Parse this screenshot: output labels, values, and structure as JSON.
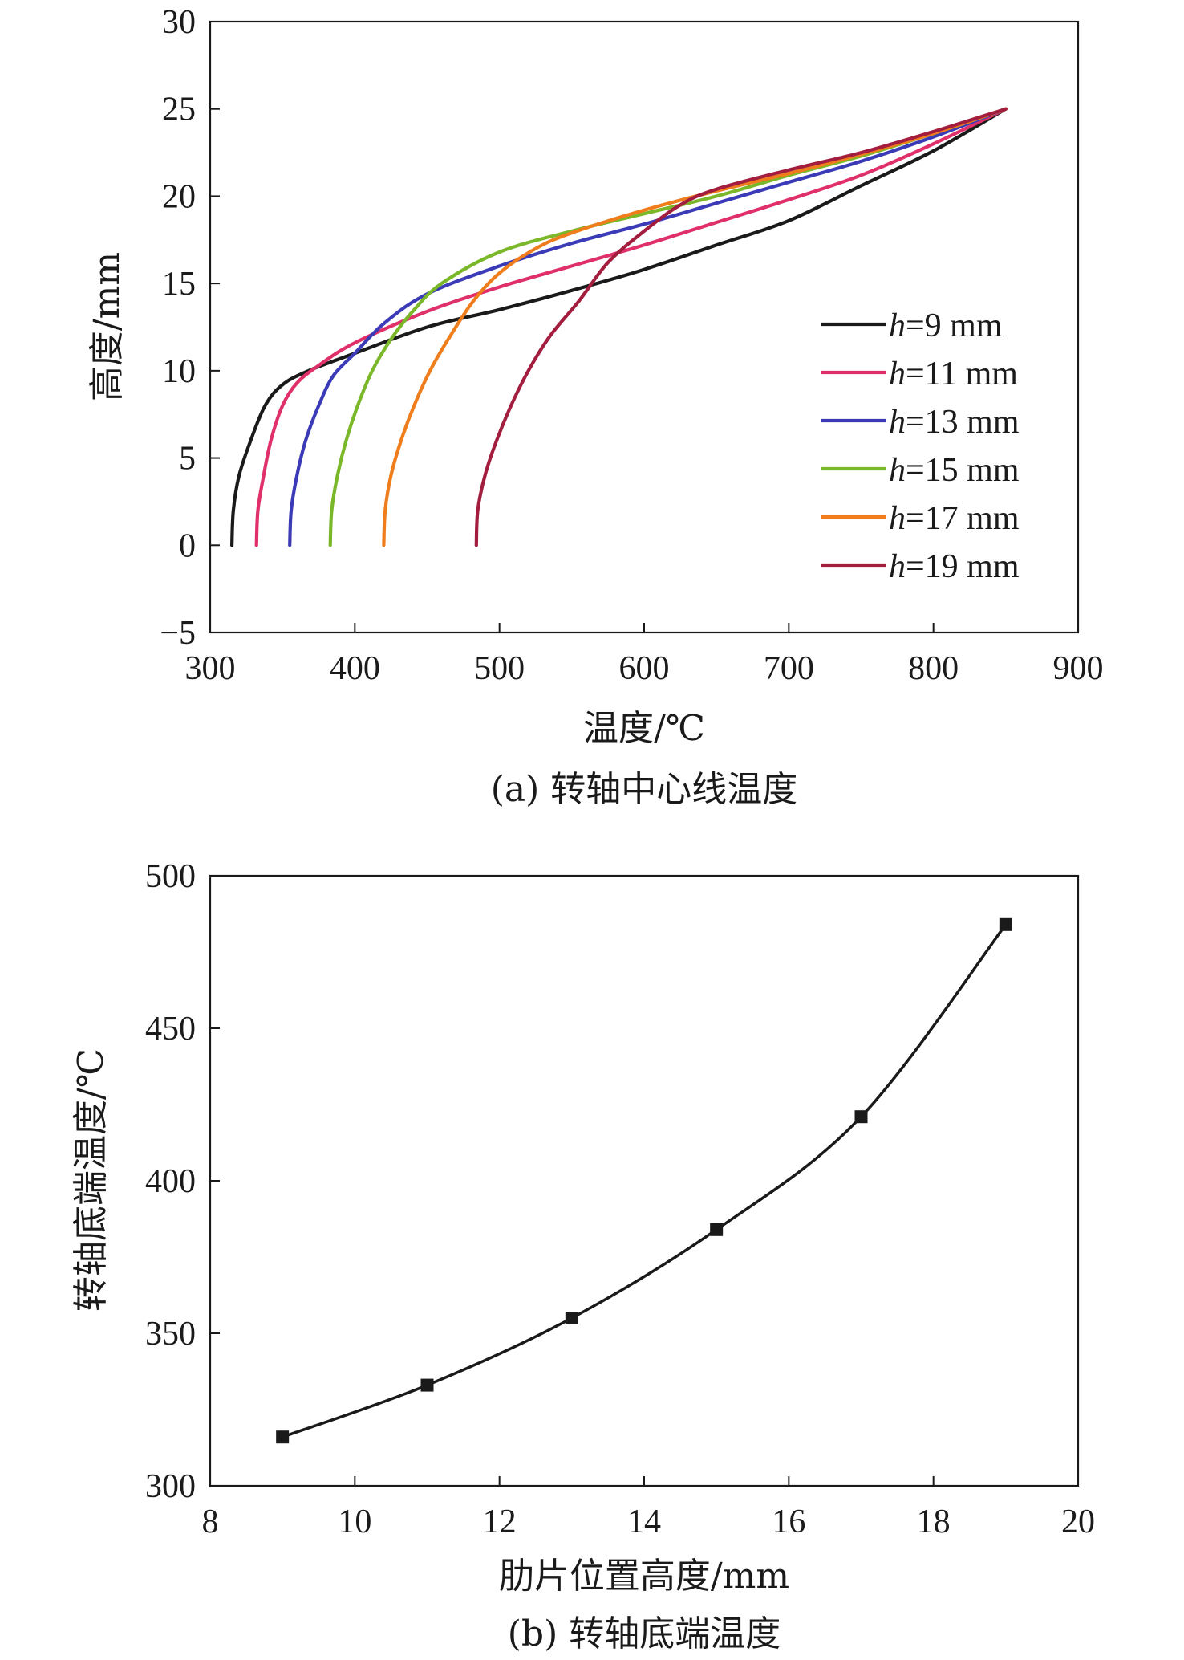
{
  "chart_data": [
    {
      "type": "line",
      "caption": "(a) 转轴中心线温度",
      "xlabel": "温度/℃",
      "ylabel": "高度/mm",
      "xlim": [
        300,
        900
      ],
      "ylim": [
        -5,
        30
      ],
      "xticks": [
        "300",
        "400",
        "500",
        "600",
        "700",
        "800",
        "900"
      ],
      "yticks": [
        "−5",
        "0",
        "5",
        "10",
        "15",
        "20",
        "25",
        "30"
      ],
      "legend_position": "right",
      "grid": false,
      "series": [
        {
          "name": "h=9 mm",
          "label_var": "h",
          "label_rest": "=9 mm",
          "color": "#1a1a1a",
          "points": [
            [
              315,
              0
            ],
            [
              316,
              2
            ],
            [
              320,
              4
            ],
            [
              328,
              6
            ],
            [
              338,
              8
            ],
            [
              350,
              9.2
            ],
            [
              368,
              10
            ],
            [
              400,
              11
            ],
            [
              450,
              12.5
            ],
            [
              500,
              13.5
            ],
            [
              550,
              14.6
            ],
            [
              600,
              15.8
            ],
            [
              650,
              17.2
            ],
            [
              700,
              18.6
            ],
            [
              750,
              20.6
            ],
            [
              800,
              22.6
            ],
            [
              850,
              25
            ]
          ]
        },
        {
          "name": "h=11 mm",
          "label_var": "h",
          "label_rest": "=11 mm",
          "color": "#e0306a",
          "points": [
            [
              332,
              0
            ],
            [
              333,
              2
            ],
            [
              337,
              4
            ],
            [
              342,
              6
            ],
            [
              350,
              8
            ],
            [
              360,
              9.3
            ],
            [
              375,
              10.3
            ],
            [
              400,
              11.6
            ],
            [
              450,
              13.4
            ],
            [
              500,
              14.8
            ],
            [
              550,
              16
            ],
            [
              600,
              17.2
            ],
            [
              650,
              18.5
            ],
            [
              700,
              19.8
            ],
            [
              750,
              21.2
            ],
            [
              800,
              23
            ],
            [
              850,
              25
            ]
          ]
        },
        {
          "name": "h=13 mm",
          "label_var": "h",
          "label_rest": "=13 mm",
          "color": "#3b3bb8",
          "points": [
            [
              355,
              0
            ],
            [
              356,
              2
            ],
            [
              360,
              4
            ],
            [
              366,
              6
            ],
            [
              375,
              8
            ],
            [
              385,
              9.7
            ],
            [
              400,
              11
            ],
            [
              420,
              12.7
            ],
            [
              450,
              14.4
            ],
            [
              500,
              16
            ],
            [
              550,
              17.3
            ],
            [
              600,
              18.4
            ],
            [
              650,
              19.6
            ],
            [
              700,
              20.8
            ],
            [
              750,
              22
            ],
            [
              800,
              23.4
            ],
            [
              850,
              25
            ]
          ]
        },
        {
          "name": "h=15 mm",
          "label_var": "h",
          "label_rest": "=15 mm",
          "color": "#7ab829",
          "points": [
            [
              383,
              0
            ],
            [
              384,
              2
            ],
            [
              388,
              4
            ],
            [
              394,
              6
            ],
            [
              402,
              8
            ],
            [
              412,
              10
            ],
            [
              425,
              11.8
            ],
            [
              440,
              13.4
            ],
            [
              460,
              15
            ],
            [
              500,
              16.8
            ],
            [
              550,
              18
            ],
            [
              600,
              19
            ],
            [
              650,
              20
            ],
            [
              700,
              21.2
            ],
            [
              750,
              22.3
            ],
            [
              800,
              23.6
            ],
            [
              850,
              25
            ]
          ]
        },
        {
          "name": "h=17 mm",
          "label_var": "h",
          "label_rest": "=17 mm",
          "color": "#f07d1c",
          "points": [
            [
              420,
              0
            ],
            [
              421,
              2
            ],
            [
              425,
              4
            ],
            [
              432,
              6
            ],
            [
              441,
              8
            ],
            [
              452,
              10
            ],
            [
              466,
              12
            ],
            [
              482,
              14
            ],
            [
              500,
              15.6
            ],
            [
              525,
              17
            ],
            [
              550,
              17.9
            ],
            [
              600,
              19.2
            ],
            [
              650,
              20.3
            ],
            [
              700,
              21.3
            ],
            [
              750,
              22.4
            ],
            [
              800,
              23.6
            ],
            [
              850,
              25
            ]
          ]
        },
        {
          "name": "h=19 mm",
          "label_var": "h",
          "label_rest": "=19 mm",
          "color": "#a31d3f",
          "points": [
            [
              484,
              0
            ],
            [
              485,
              2
            ],
            [
              490,
              4
            ],
            [
              498,
              6
            ],
            [
              508,
              8
            ],
            [
              520,
              10
            ],
            [
              535,
              12
            ],
            [
              555,
              14
            ],
            [
              575,
              16.2
            ],
            [
              600,
              18
            ],
            [
              625,
              19.5
            ],
            [
              650,
              20.4
            ],
            [
              700,
              21.5
            ],
            [
              750,
              22.5
            ],
            [
              800,
              23.7
            ],
            [
              850,
              25
            ]
          ]
        }
      ]
    },
    {
      "type": "line",
      "caption": "(b) 转轴底端温度",
      "xlabel": "肋片位置高度/mm",
      "ylabel": "转轴底端温度/℃",
      "xlim": [
        8,
        20
      ],
      "ylim": [
        300,
        500
      ],
      "xticks": [
        "8",
        "10",
        "12",
        "14",
        "16",
        "18",
        "20"
      ],
      "yticks": [
        "300",
        "350",
        "400",
        "450",
        "500"
      ],
      "grid": false,
      "marker": "square",
      "series": [
        {
          "color": "#1a1a1a",
          "x": [
            9,
            11,
            13,
            15,
            17,
            19
          ],
          "y": [
            316,
            333,
            355,
            384,
            421,
            484
          ]
        }
      ]
    }
  ]
}
